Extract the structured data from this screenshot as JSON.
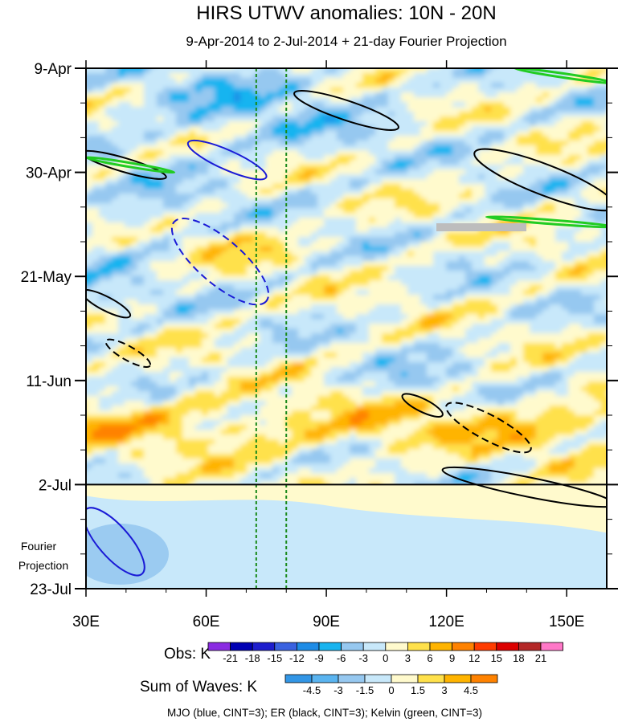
{
  "chart_data": {
    "type": "heatmap",
    "title": "HIRS UTWV anomalies: 10N - 20N",
    "subtitle": "9-Apr-2014 to 2-Jul-2014 + 21-day Fourier Projection",
    "x_ticks": [
      {
        "value": 30,
        "label": "30E"
      },
      {
        "value": 60,
        "label": "60E"
      },
      {
        "value": 90,
        "label": "90E"
      },
      {
        "value": 120,
        "label": "120E"
      },
      {
        "value": 150,
        "label": "150E"
      }
    ],
    "x_range": [
      30,
      160
    ],
    "y_ticks": [
      {
        "day": 0,
        "label": "9-Apr"
      },
      {
        "day": 21,
        "label": "30-Apr"
      },
      {
        "day": 42,
        "label": "21-May"
      },
      {
        "day": 63,
        "label": "11-Jun"
      },
      {
        "day": 84,
        "label": "2-Jul"
      },
      {
        "day": 105,
        "label": "23-Jul"
      }
    ],
    "y_range_days": [
      0,
      105
    ],
    "observation_end_day": 84,
    "projection_label": [
      "Fourier",
      "Projection"
    ],
    "reference_lines_lon": [
      72.5,
      80
    ],
    "obs_colorbar": {
      "label": "Obs: K",
      "levels": [
        "-21",
        "-18",
        "-15",
        "-12",
        "-9",
        "-6",
        "-3",
        "0",
        "3",
        "6",
        "9",
        "12",
        "15",
        "18",
        "21"
      ],
      "colors": [
        "#8a2be2",
        "#0000b4",
        "#1e1ecd",
        "#3a62e0",
        "#1e8ce6",
        "#18b4f0",
        "#96c8f0",
        "#c8e8fa",
        "#fffacd",
        "#ffe14b",
        "#ffb400",
        "#ff8200",
        "#ff3c00",
        "#dc0000",
        "#b42828",
        "#ff78c8"
      ]
    },
    "waves_colorbar": {
      "label": "Sum of Waves: K",
      "levels": [
        "-4.5",
        "-3",
        "-1.5",
        "0",
        "1.5",
        "3",
        "4.5"
      ],
      "colors": [
        "#3296e6",
        "#5ab4f0",
        "#96c8f0",
        "#c8e8fa",
        "#fffacd",
        "#ffe14b",
        "#ffb400",
        "#ff8200"
      ]
    },
    "legend_note": "MJO (blue, CINT=3); ER (black, CINT=3); Kelvin (green, CINT=3)",
    "wave_contours": [
      {
        "wave": "MJO",
        "color": "#1a1ad6",
        "style": "solid",
        "lon0": 55.5,
        "lon1": 75,
        "day0": 15,
        "day1": 22
      },
      {
        "wave": "MJO",
        "color": "#1a1ad6",
        "style": "dashed",
        "lon0": 52,
        "lon1": 75,
        "day0": 31,
        "day1": 47
      },
      {
        "wave": "MJO",
        "color": "#1a1ad6",
        "style": "solid",
        "lon0": 30,
        "lon1": 44,
        "day0": 89,
        "day1": 102
      },
      {
        "wave": "ER",
        "color": "#000000",
        "style": "solid",
        "lon0": 82,
        "lon1": 108,
        "day0": 5,
        "day1": 12
      },
      {
        "wave": "ER",
        "color": "#000000",
        "style": "solid",
        "lon0": 29,
        "lon1": 50,
        "day0": 17,
        "day1": 22
      },
      {
        "wave": "ER",
        "color": "#000000",
        "style": "solid",
        "lon0": 127,
        "lon1": 162,
        "day0": 17,
        "day1": 28
      },
      {
        "wave": "ER",
        "color": "#000000",
        "style": "solid",
        "lon0": 29,
        "lon1": 41,
        "day0": 45,
        "day1": 50
      },
      {
        "wave": "ER",
        "color": "#000000",
        "style": "dashed",
        "lon0": 35,
        "lon1": 46,
        "day0": 55,
        "day1": 60
      },
      {
        "wave": "ER",
        "color": "#000000",
        "style": "solid",
        "lon0": 109,
        "lon1": 119,
        "day0": 66,
        "day1": 70
      },
      {
        "wave": "ER",
        "color": "#000000",
        "style": "dashed",
        "lon0": 120,
        "lon1": 141,
        "day0": 68,
        "day1": 77
      },
      {
        "wave": "ER",
        "color": "#000000",
        "style": "solid",
        "lon0": 119,
        "lon1": 162,
        "day0": 81,
        "day1": 88
      },
      {
        "wave": "Kelvin",
        "color": "#22cc22",
        "style": "solid",
        "lon0": 137,
        "lon1": 162,
        "day0": 0,
        "day1": 3
      },
      {
        "wave": "Kelvin",
        "color": "#22cc22",
        "style": "solid",
        "lon0": 30,
        "lon1": 52,
        "day0": 18,
        "day1": 21
      },
      {
        "wave": "Kelvin",
        "color": "#22cc22",
        "style": "solid",
        "lon0": 130,
        "lon1": 162,
        "day0": 30,
        "day1": 32
      }
    ]
  }
}
